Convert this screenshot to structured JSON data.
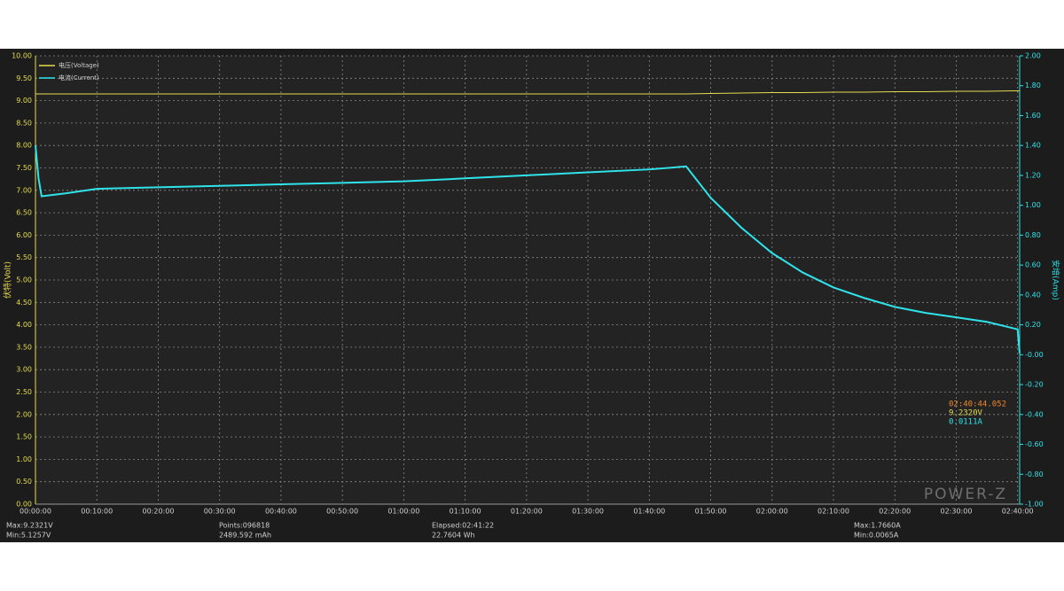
{
  "chart_data": {
    "type": "line",
    "y_label": "伏特(Volt)",
    "y2_label": "安培(Amp)",
    "legend": "upper left",
    "grid": true,
    "x": [
      0,
      30,
      60,
      300,
      600,
      1200,
      1800,
      2400,
      3000,
      3600,
      4200,
      4800,
      5400,
      6000,
      6360,
      6600,
      6900,
      7200,
      7500,
      7800,
      8100,
      8400,
      8700,
      9000,
      9300,
      9600,
      9620
    ],
    "xlim": [
      0,
      9620
    ],
    "xticks": [
      {
        "value": 0,
        "label": "00:00:00"
      },
      {
        "value": 600,
        "label": "00:10:00"
      },
      {
        "value": 1200,
        "label": "00:20:00"
      },
      {
        "value": 1800,
        "label": "00:30:00"
      },
      {
        "value": 2400,
        "label": "00:40:00"
      },
      {
        "value": 3000,
        "label": "00:50:00"
      },
      {
        "value": 3600,
        "label": "01:00:00"
      },
      {
        "value": 4200,
        "label": "01:10:00"
      },
      {
        "value": 4800,
        "label": "01:20:00"
      },
      {
        "value": 5400,
        "label": "01:30:00"
      },
      {
        "value": 6000,
        "label": "01:40:00"
      },
      {
        "value": 6600,
        "label": "01:50:00"
      },
      {
        "value": 7200,
        "label": "02:00:00"
      },
      {
        "value": 7800,
        "label": "02:10:00"
      },
      {
        "value": 8400,
        "label": "02:20:00"
      },
      {
        "value": 9000,
        "label": "02:30:00"
      },
      {
        "value": 9600,
        "label": "02:40:00"
      }
    ],
    "ylim": [
      0,
      10
    ],
    "yticks": [
      {
        "value": 0,
        "label": "0.00"
      },
      {
        "value": 0.5,
        "label": "0.50"
      },
      {
        "value": 1,
        "label": "1.00"
      },
      {
        "value": 1.5,
        "label": "1.50"
      },
      {
        "value": 2,
        "label": "2.00"
      },
      {
        "value": 2.5,
        "label": "2.50"
      },
      {
        "value": 3,
        "label": "3.00"
      },
      {
        "value": 3.5,
        "label": "3.50"
      },
      {
        "value": 4,
        "label": "4.00"
      },
      {
        "value": 4.5,
        "label": "4.50"
      },
      {
        "value": 5,
        "label": "5.00"
      },
      {
        "value": 5.5,
        "label": "5.50"
      },
      {
        "value": 6,
        "label": "6.00"
      },
      {
        "value": 6.5,
        "label": "6.50"
      },
      {
        "value": 7,
        "label": "7.00"
      },
      {
        "value": 7.5,
        "label": "7.50"
      },
      {
        "value": 8,
        "label": "8.00"
      },
      {
        "value": 8.5,
        "label": "8.50"
      },
      {
        "value": 9,
        "label": "9.00"
      },
      {
        "value": 9.5,
        "label": "9.50"
      },
      {
        "value": 10,
        "label": "10.00"
      }
    ],
    "y2lim": [
      -1,
      2
    ],
    "y2ticks": [
      {
        "value": -1,
        "label": "-1.00"
      },
      {
        "value": -0.8,
        "label": "-0.80"
      },
      {
        "value": -0.6,
        "label": "-0.60"
      },
      {
        "value": -0.4,
        "label": "-0.40"
      },
      {
        "value": -0.2,
        "label": "-0.20"
      },
      {
        "value": 0,
        "label": "-0.00"
      },
      {
        "value": 0.2,
        "label": "0.20"
      },
      {
        "value": 0.4,
        "label": "0.40"
      },
      {
        "value": 0.6,
        "label": "0.60"
      },
      {
        "value": 0.8,
        "label": "0.80"
      },
      {
        "value": 1,
        "label": "1.00"
      },
      {
        "value": 1.2,
        "label": "1.20"
      },
      {
        "value": 1.4,
        "label": "1.40"
      },
      {
        "value": 1.6,
        "label": "1.60"
      },
      {
        "value": 1.8,
        "label": "1.80"
      },
      {
        "value": 2,
        "label": "2.00"
      }
    ],
    "series": [
      {
        "name": "电压(Voltage)",
        "color": "#e6dc50",
        "values": [
          9.15,
          9.15,
          9.15,
          9.15,
          9.15,
          9.15,
          9.15,
          9.15,
          9.15,
          9.15,
          9.15,
          9.15,
          9.15,
          9.15,
          9.15,
          9.16,
          9.17,
          9.18,
          9.18,
          9.19,
          9.19,
          9.2,
          9.2,
          9.21,
          9.21,
          9.22,
          9.22
        ]
      },
      {
        "name": "电流(Current)",
        "color": "#2fe3ea",
        "axis": "y2",
        "values": [
          1.4,
          1.18,
          1.06,
          1.08,
          1.11,
          1.12,
          1.13,
          1.14,
          1.15,
          1.16,
          1.18,
          1.2,
          1.22,
          1.24,
          1.26,
          1.05,
          0.85,
          0.68,
          0.55,
          0.45,
          0.38,
          0.32,
          0.28,
          0.25,
          0.22,
          0.17,
          0.01
        ]
      }
    ]
  },
  "readout": {
    "time": "02:40:44.052",
    "voltage": "9.2320V",
    "current": "0.0111A"
  },
  "logo": "POWER-Z",
  "stats": {
    "vmax": "Max:9.2321V",
    "vmin": "Min:5.1257V",
    "points": "Points:096818",
    "capacity": "2489.592 mAh",
    "elapsed": "Elapsed:02:41:22",
    "energy": "22.7604 Wh",
    "imax": "Max:1.7660A",
    "imin": "Min:0.0065A"
  }
}
